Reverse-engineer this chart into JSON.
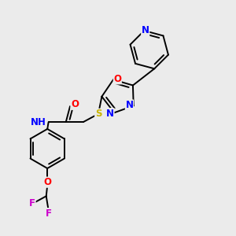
{
  "background_color": "#ebebeb",
  "figure_size": [
    3.0,
    3.0
  ],
  "dpi": 100,
  "bond_color": "#000000",
  "bond_lw": 1.4,
  "atom_bg": "#ebebeb",
  "colors": {
    "N": "#0000FF",
    "O": "#FF0000",
    "S": "#C8B400",
    "F": "#CC00CC",
    "H": "#000000",
    "C": "#000000"
  },
  "fs": 8.5
}
